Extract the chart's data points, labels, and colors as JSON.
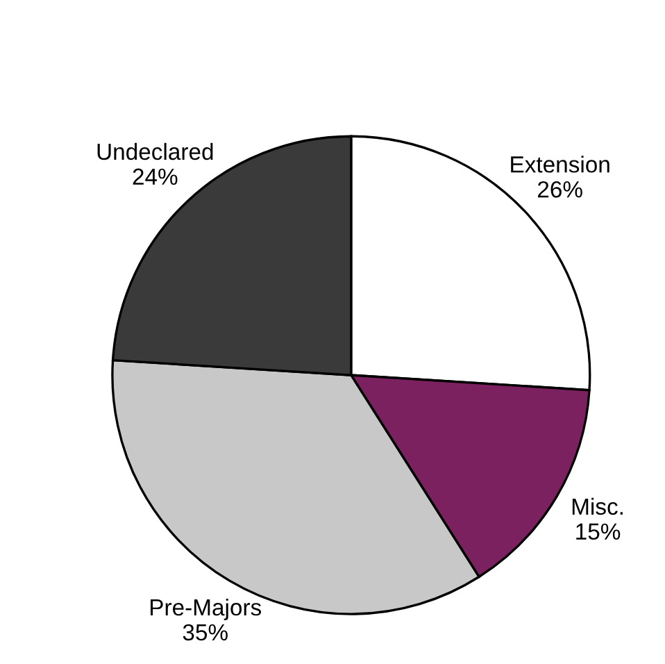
{
  "chart_data": {
    "type": "pie",
    "categories": [
      "Extension",
      "Misc.",
      "Pre-Majors",
      "Undeclared"
    ],
    "values": [
      26,
      15,
      35,
      24
    ],
    "value_labels": [
      "26%",
      "15%",
      "35%",
      "24%"
    ],
    "colors": [
      "#ffffff",
      "#7b2160",
      "#c8c8c8",
      "#3a3a3a"
    ],
    "legend": false
  }
}
